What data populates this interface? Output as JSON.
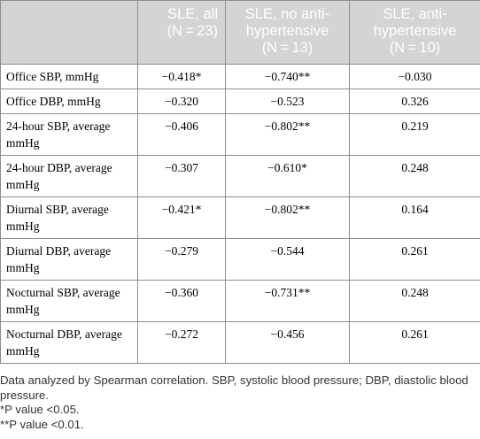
{
  "table": {
    "headers": [
      {
        "lines": [
          ""
        ]
      },
      {
        "lines": [
          "SLE, all",
          "(N = 23)"
        ]
      },
      {
        "lines": [
          "SLE, no anti-",
          "hypertensive",
          "(N = 13)"
        ]
      },
      {
        "lines": [
          "SLE, anti-",
          "hypertensive",
          "(N = 10)"
        ]
      }
    ],
    "rows": [
      {
        "label": "Office SBP, mmHg",
        "v1": "−0.418*",
        "v2": "−0.740**",
        "v3": "−0.030"
      },
      {
        "label": "Office DBP, mmHg",
        "v1": "−0.320",
        "v2": "−0.523",
        "v3": "0.326"
      },
      {
        "label": "24-hour SBP, average mmHg",
        "v1": "−0.406",
        "v2": "−0.802**",
        "v3": "0.219"
      },
      {
        "label": "24-hour DBP, average mmHg",
        "v1": "−0.307",
        "v2": "−0.610*",
        "v3": "0.248"
      },
      {
        "label": "Diurnal SBP, average mmHg",
        "v1": "−0.421*",
        "v2": "−0.802**",
        "v3": "0.164"
      },
      {
        "label": "Diurnal DBP, average mmHg",
        "v1": "−0.279",
        "v2": "−0.544",
        "v3": "0.261"
      },
      {
        "label": "Nocturnal SBP, average mmHg",
        "v1": "−0.360",
        "v2": "−0.731**",
        "v3": "0.248"
      },
      {
        "label": "Nocturnal DBP, average mmHg",
        "v1": "−0.272",
        "v2": "−0.456",
        "v3": "0.261"
      }
    ]
  },
  "footnotes": {
    "method": "Data analyzed by Spearman correlation. SBP, systolic blood pressure; DBP, diastolic blood pressure.",
    "p05": "*P value <0.05.",
    "p01": "**P value <0.01."
  }
}
